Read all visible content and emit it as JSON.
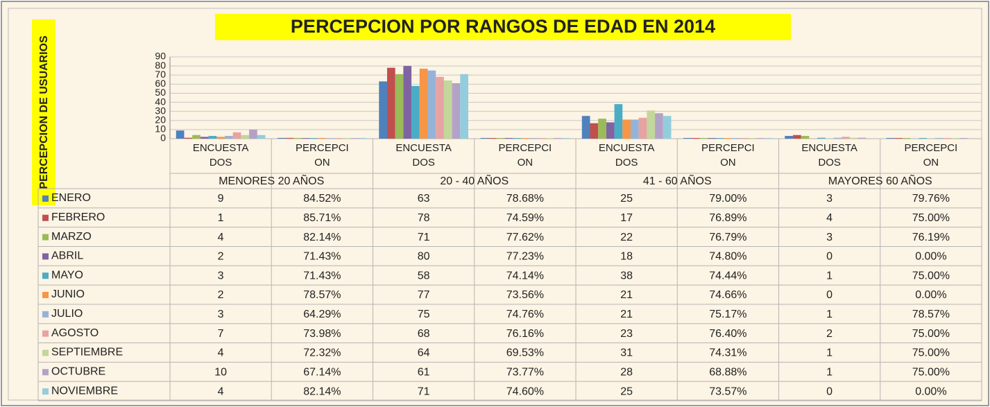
{
  "chart_data": {
    "type": "bar",
    "title": "PERCEPCION POR RANGOS DE EDAD EN 2014",
    "y_label": "PERCEPCION DE USUARIOS",
    "groups": [
      "MENORES 20 AÑOS",
      "20 - 40 AÑOS",
      "41 - 60 AÑOS",
      "MAYORES 60 AÑOS"
    ],
    "categories": [
      "ENCUESTADOS",
      "PERCEPCION",
      "ENCUESTADOS",
      "PERCEPCION",
      "ENCUESTADOS",
      "PERCEPCION",
      "ENCUESTADOS",
      "PERCEPCION"
    ],
    "ylim": [
      0,
      90
    ],
    "yticks": [
      0,
      10,
      20,
      30,
      40,
      50,
      60,
      70,
      80,
      90
    ],
    "grid": true,
    "series": [
      {
        "name": "ENERO",
        "color": "#4f81bd",
        "values": [
          9,
          0.8452,
          63,
          0.7868,
          25,
          0.79,
          3,
          0.7976
        ],
        "value_labels": [
          null,
          "84.52%",
          null,
          "78.68%",
          null,
          "79.00%",
          null,
          "79.76%"
        ]
      },
      {
        "name": "FEBRERO",
        "color": "#c0504d",
        "values": [
          1,
          0.8571,
          78,
          0.7459,
          17,
          0.7689,
          4,
          0.75
        ],
        "value_labels": [
          null,
          "85.71%",
          null,
          "74.59%",
          null,
          "76.89%",
          null,
          "75.00%"
        ]
      },
      {
        "name": "MARZO",
        "color": "#9bbb59",
        "values": [
          4,
          0.8214,
          71,
          0.7762,
          22,
          0.7679,
          3,
          0.7619
        ],
        "value_labels": [
          null,
          "82.14%",
          null,
          "77.62%",
          null,
          "76.79%",
          null,
          "76.19%"
        ]
      },
      {
        "name": "ABRIL",
        "color": "#8064a2",
        "values": [
          2,
          0.7143,
          80,
          0.7723,
          18,
          0.748,
          0,
          0
        ],
        "value_labels": [
          null,
          "71.43%",
          null,
          "77.23%",
          null,
          "74.80%",
          null,
          "0.00%"
        ]
      },
      {
        "name": "MAYO",
        "color": "#4bacc6",
        "values": [
          3,
          0.7143,
          58,
          0.7414,
          38,
          0.7444,
          1,
          0.75
        ],
        "value_labels": [
          null,
          "71.43%",
          null,
          "74.14%",
          null,
          "74.44%",
          null,
          "75.00%"
        ]
      },
      {
        "name": "JUNIO",
        "color": "#f79646",
        "values": [
          2,
          0.7857,
          77,
          0.7356,
          21,
          0.7466,
          0,
          0
        ],
        "value_labels": [
          null,
          "78.57%",
          null,
          "73.56%",
          null,
          "74.66%",
          null,
          "0.00%"
        ]
      },
      {
        "name": "JULIO",
        "color": "#95b3d7",
        "values": [
          3,
          0.6429,
          75,
          0.7476,
          21,
          0.7517,
          1,
          0.7857
        ],
        "value_labels": [
          null,
          "64.29%",
          null,
          "74.76%",
          null,
          "75.17%",
          null,
          "78.57%"
        ]
      },
      {
        "name": "AGOSTO",
        "color": "#e6a3a2",
        "values": [
          7,
          0.7398,
          68,
          0.7616,
          23,
          0.764,
          2,
          0.75
        ],
        "value_labels": [
          null,
          "73.98%",
          null,
          "76.16%",
          null,
          "76.40%",
          null,
          "75.00%"
        ]
      },
      {
        "name": "SEPTIEMBRE",
        "color": "#c3d69b",
        "values": [
          4,
          0.7232,
          64,
          0.6953,
          31,
          0.7431,
          1,
          0.75
        ],
        "value_labels": [
          null,
          "72.32%",
          null,
          "69.53%",
          null,
          "74.31%",
          null,
          "75.00%"
        ]
      },
      {
        "name": "OCTUBRE",
        "color": "#b3a2c7",
        "values": [
          10,
          0.6714,
          61,
          0.7377,
          28,
          0.6888,
          1,
          0.75
        ],
        "value_labels": [
          null,
          "67.14%",
          null,
          "73.77%",
          null,
          "68.88%",
          null,
          "75.00%"
        ]
      },
      {
        "name": "NOVIEMBRE",
        "color": "#93cddd",
        "values": [
          4,
          0.8214,
          71,
          0.746,
          25,
          0.7357,
          0,
          0
        ],
        "value_labels": [
          null,
          "82.14%",
          null,
          "74.60%",
          null,
          "73.57%",
          null,
          "0.00%"
        ]
      }
    ]
  }
}
